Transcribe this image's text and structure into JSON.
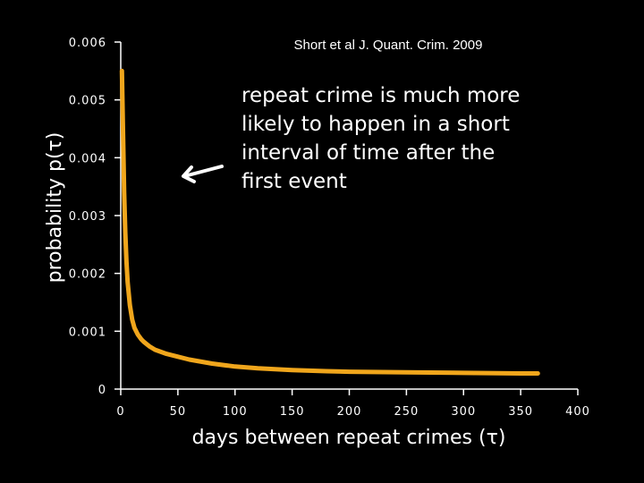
{
  "chart_data": {
    "type": "line",
    "source_note": "Short et al J. Quant. Crim. 2009",
    "xlabel": "days between repeat crimes (τ)",
    "ylabel": "probability p(τ)",
    "xlim": [
      0,
      400
    ],
    "ylim": [
      0,
      0.006
    ],
    "x_ticks": [
      "0",
      "50",
      "100",
      "150",
      "200",
      "250",
      "300",
      "350",
      "400"
    ],
    "y_ticks": [
      "0",
      "0.001",
      "0.002",
      "0.003",
      "0.004",
      "0.005",
      "0.006"
    ],
    "annotation": [
      "repeat crime is much more",
      "likely to happen in a short",
      "interval of time after the",
      "first event"
    ],
    "grid": false,
    "series": [
      {
        "color": "#f0a61c",
        "x": [
          1,
          2,
          3,
          4,
          5,
          6,
          8,
          10,
          12,
          15,
          18,
          20,
          25,
          30,
          40,
          50,
          60,
          80,
          100,
          120,
          150,
          180,
          200,
          250,
          300,
          350,
          365
        ],
        "y": [
          0.0055,
          0.0044,
          0.0034,
          0.0027,
          0.0022,
          0.00185,
          0.00145,
          0.0012,
          0.00106,
          0.00094,
          0.00086,
          0.00082,
          0.00074,
          0.00068,
          0.00061,
          0.00056,
          0.00051,
          0.00044,
          0.00039,
          0.00036,
          0.00033,
          0.00031,
          0.0003,
          0.00029,
          0.00028,
          0.00027,
          0.00027
        ]
      }
    ]
  }
}
